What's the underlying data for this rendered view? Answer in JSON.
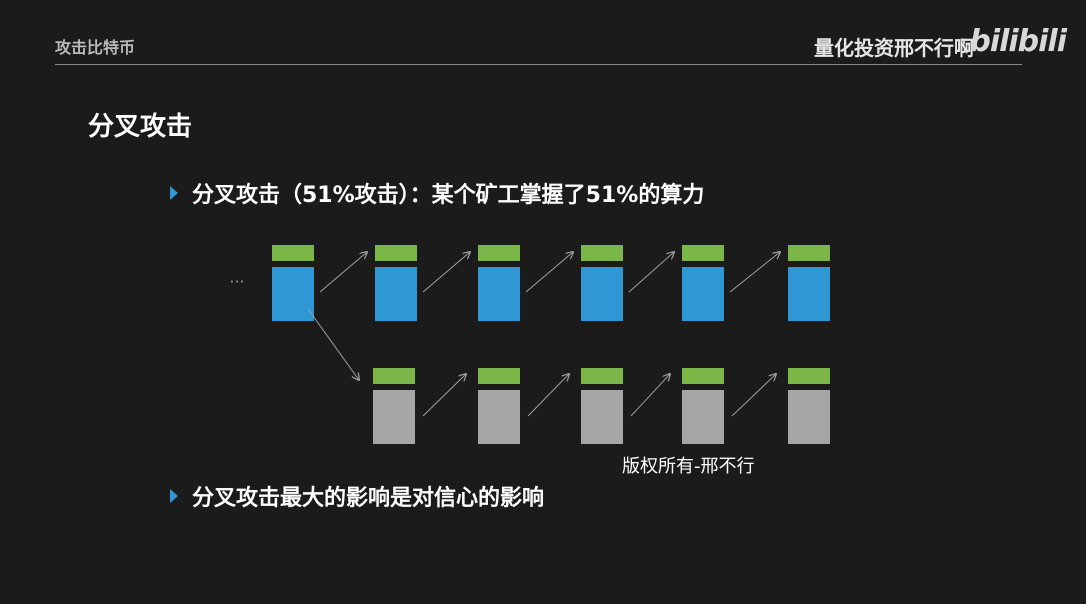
{
  "header": {
    "section_title": "攻击比特币",
    "channel_name": "量化投资邢不行啊",
    "logo_text": "bilibili"
  },
  "slide": {
    "title": "分叉攻击",
    "bullets": [
      "分叉攻击（51%攻击）：某个矿工掌握了51%的算力",
      "分叉攻击最大的影响是对信心的影响"
    ],
    "ellipsis": "···",
    "copyright": "版权所有-邢不行"
  },
  "diagram": {
    "main_chain_blocks": 6,
    "fork_chain_blocks": 5,
    "colors": {
      "header_bar": "#7ab648",
      "main_block": "#2f97d4",
      "fork_block": "#a6a6a6",
      "arrow": "#a0a0a0",
      "bullet": "#2f97d4"
    }
  }
}
